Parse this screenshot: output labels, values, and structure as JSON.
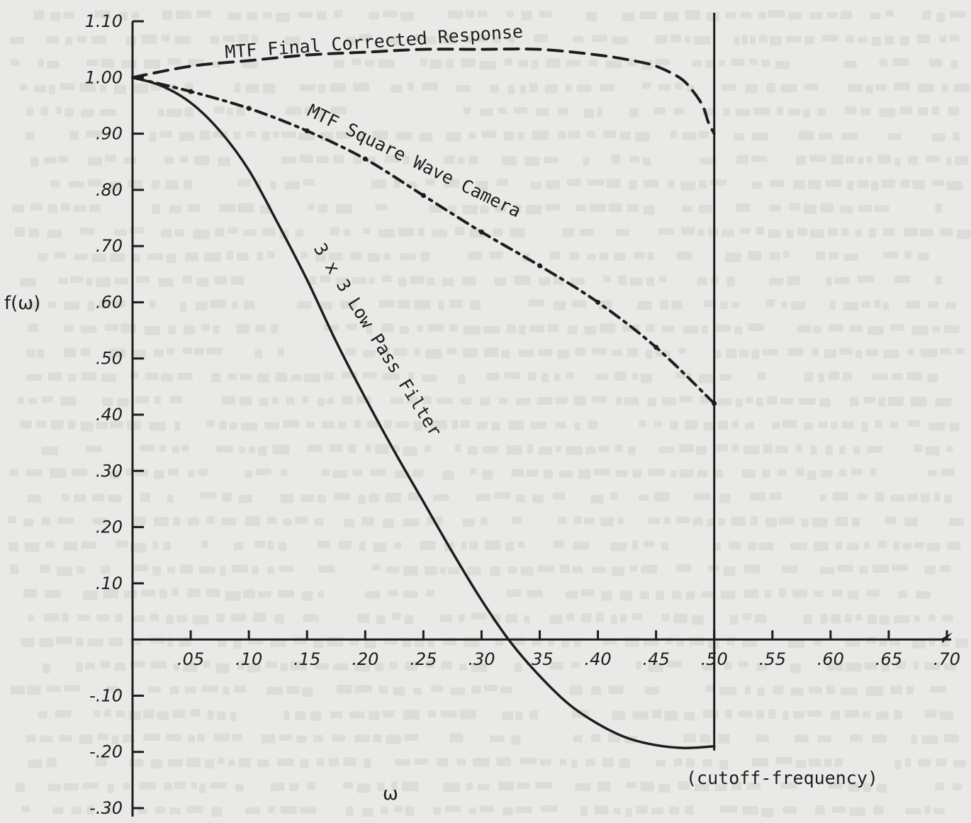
{
  "chart_data": {
    "type": "line",
    "title": "",
    "xlabel": "ω",
    "ylabel": "f(ω)",
    "xlim": [
      0,
      0.7
    ],
    "ylim": [
      -0.3,
      1.1
    ],
    "x_ticks": [
      0.05,
      0.1,
      0.15,
      0.2,
      0.25,
      0.3,
      0.35,
      0.4,
      0.45,
      0.5,
      0.55,
      0.6,
      0.65,
      0.7
    ],
    "x_tick_labels": [
      ".05",
      ".10",
      ".15",
      ".20",
      ".25",
      ".30",
      ".35",
      ".40",
      ".45",
      ".50",
      ".55",
      ".60",
      ".65",
      ".70"
    ],
    "y_ticks": [
      1.1,
      1.0,
      0.9,
      0.8,
      0.7,
      0.6,
      0.5,
      0.4,
      0.3,
      0.2,
      0.1,
      -0.1,
      -0.2,
      -0.3
    ],
    "y_tick_labels": [
      "1.10",
      "1.00",
      ".90",
      ".80",
      ".70",
      ".60",
      ".50",
      ".40",
      ".30",
      ".20",
      ".10",
      "-.10",
      "-.20",
      "-.30"
    ],
    "grid": false,
    "annotation": "(cutoff-frequency)",
    "cutoff_x": 0.5,
    "series": [
      {
        "name": "MTF Final Corrected Response",
        "style": "dashed",
        "x": [
          0.0,
          0.05,
          0.1,
          0.15,
          0.2,
          0.25,
          0.3,
          0.35,
          0.4,
          0.43,
          0.45,
          0.47,
          0.48,
          0.49,
          0.495,
          0.5
        ],
        "y": [
          1.0,
          1.02,
          1.03,
          1.04,
          1.045,
          1.05,
          1.05,
          1.05,
          1.04,
          1.03,
          1.02,
          1.0,
          0.98,
          0.95,
          0.92,
          0.9
        ]
      },
      {
        "name": "MTF Square Wave Camera",
        "style": "dash-dot",
        "x": [
          0.0,
          0.05,
          0.1,
          0.15,
          0.2,
          0.25,
          0.3,
          0.35,
          0.4,
          0.45,
          0.5
        ],
        "y": [
          1.0,
          0.975,
          0.945,
          0.905,
          0.855,
          0.79,
          0.725,
          0.665,
          0.6,
          0.52,
          0.42
        ]
      },
      {
        "name": "3 x 3 Low Pass Filter",
        "style": "solid",
        "x": [
          0.0,
          0.025,
          0.05,
          0.075,
          0.1,
          0.125,
          0.15,
          0.175,
          0.2,
          0.225,
          0.25,
          0.275,
          0.3,
          0.325,
          0.35,
          0.375,
          0.4,
          0.425,
          0.45,
          0.475,
          0.5
        ],
        "y": [
          1.0,
          0.985,
          0.955,
          0.905,
          0.835,
          0.74,
          0.64,
          0.53,
          0.43,
          0.335,
          0.245,
          0.155,
          0.07,
          -0.005,
          -0.065,
          -0.115,
          -0.15,
          -0.175,
          -0.188,
          -0.193,
          -0.19
        ]
      }
    ]
  },
  "colors": {
    "ink": "#1d1d1d",
    "paper": "#e9e9e7"
  }
}
